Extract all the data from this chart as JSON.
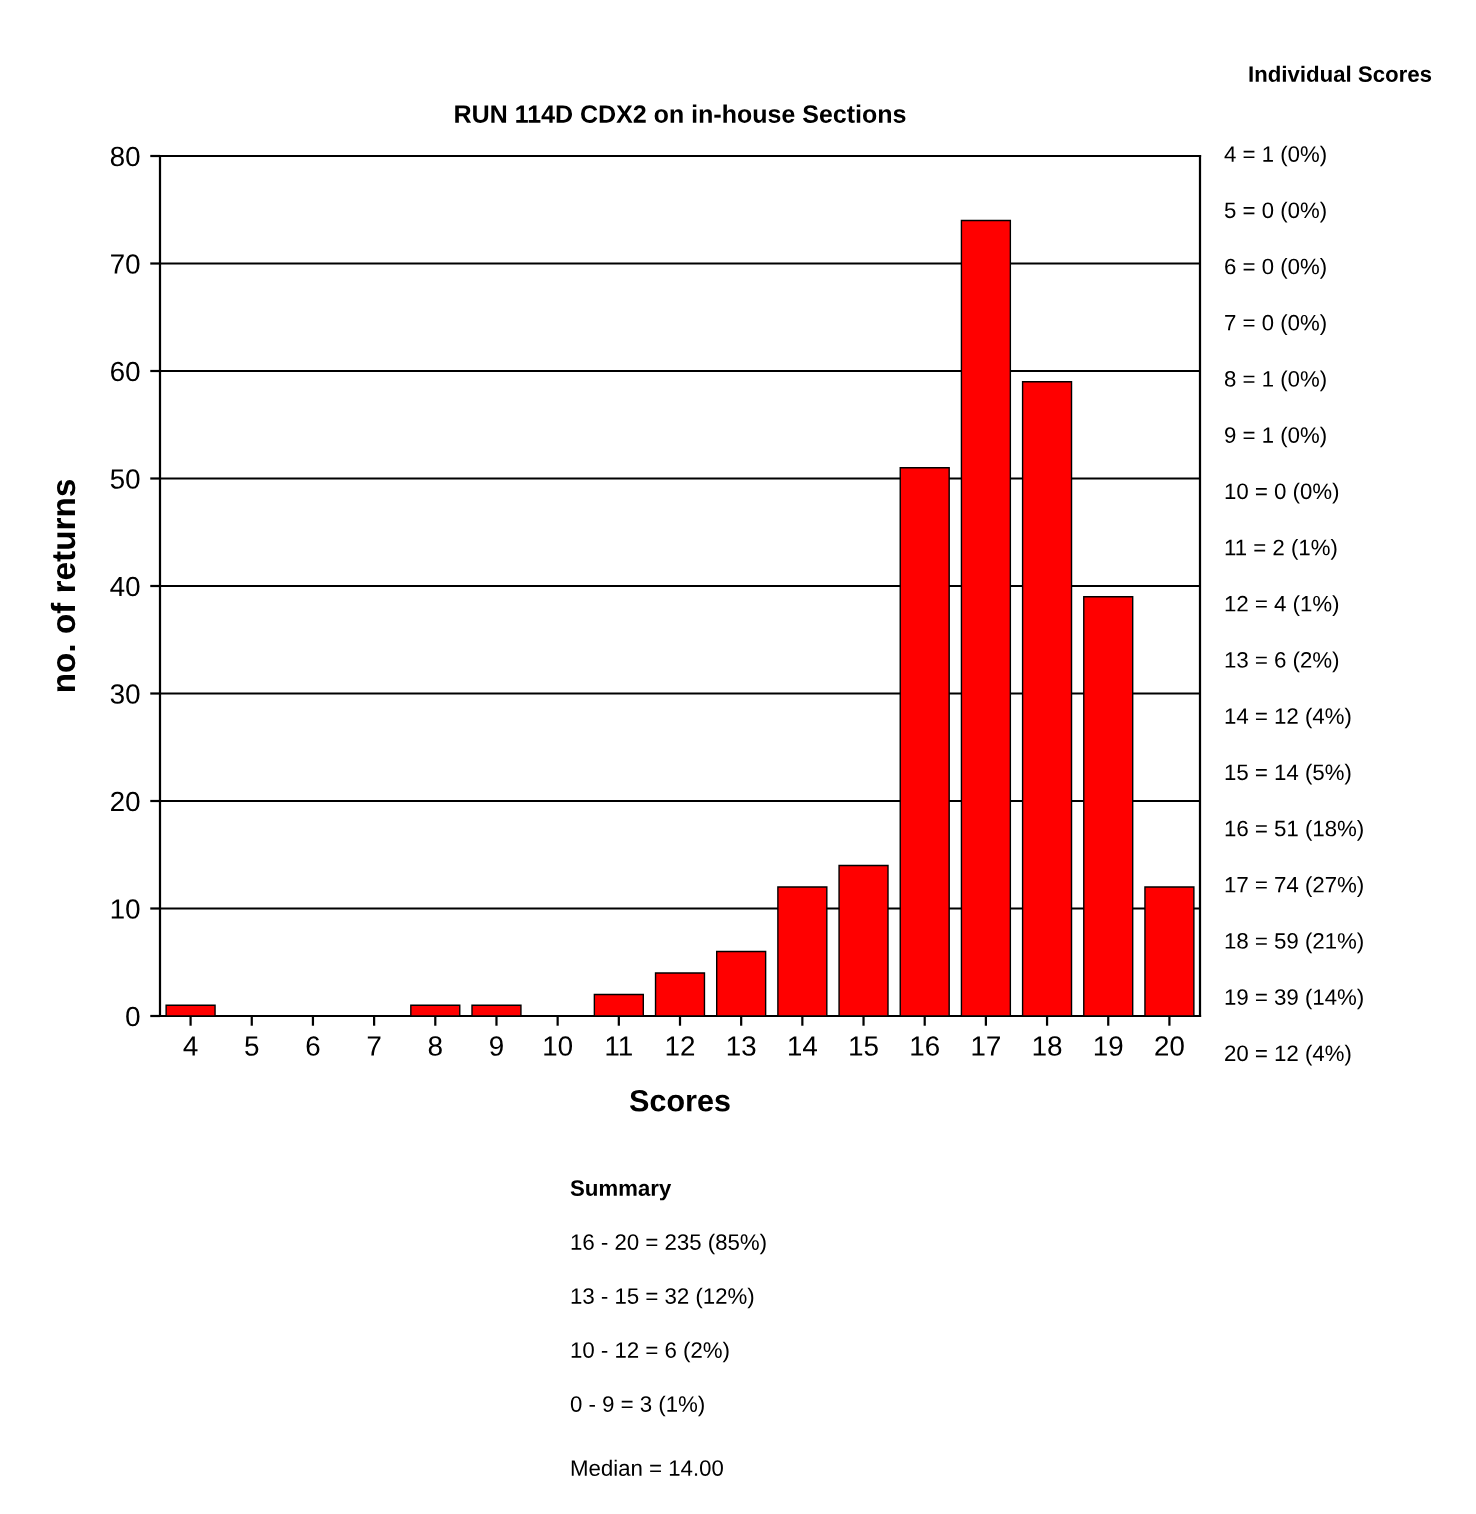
{
  "chart_data": {
    "type": "bar",
    "title": "RUN 114D CDX2 on in-house Sections",
    "xlabel": "Scores",
    "ylabel": "no. of returns",
    "categories": [
      "4",
      "5",
      "6",
      "7",
      "8",
      "9",
      "10",
      "11",
      "12",
      "13",
      "14",
      "15",
      "16",
      "17",
      "18",
      "19",
      "20"
    ],
    "values": [
      1,
      0,
      0,
      0,
      1,
      1,
      0,
      2,
      4,
      6,
      12,
      14,
      51,
      74,
      59,
      39,
      12
    ],
    "color": "#ff0000",
    "ylim": [
      0,
      80
    ],
    "yticks": [
      0,
      10,
      20,
      30,
      40,
      50,
      60,
      70,
      80
    ],
    "grid": "y",
    "legend": false,
    "annotations": [
      "Individual Scores",
      "4 = 1 (0%)",
      "5 = 0 (0%)",
      "6 = 0 (0%)",
      "7 = 0 (0%)",
      "8 = 1 (0%)",
      "9 = 1 (0%)",
      "10 = 0 (0%)",
      "11 = 2 (1%)",
      "12 = 4 (1%)",
      "13 = 6 (2%)",
      "14 = 12 (4%)",
      "15 = 14 (5%)",
      "16 = 51 (18%)",
      "17 = 74 (27%)",
      "18 = 59 (21%)",
      "19 = 39 (14%)",
      "20 = 12 (4%)",
      "Summary",
      "16 - 20 = 235 (85%)",
      "13 - 15 = 32 (12%)",
      "10 - 12 = 6 (2%)",
      "0 - 9 = 3 (1%)",
      "Median = 14.00"
    ]
  }
}
